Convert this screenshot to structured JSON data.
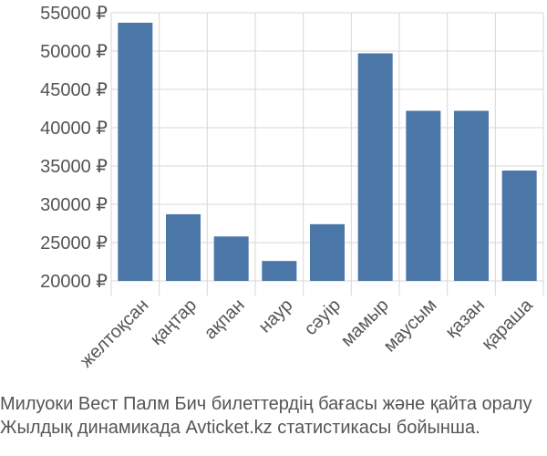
{
  "chart_data": {
    "type": "bar",
    "categories": [
      "желтоқсан",
      "қаңтар",
      "ақпан",
      "наур",
      "сәуір",
      "мамыр",
      "маусым",
      "қазан",
      "қараша"
    ],
    "series": [
      {
        "values": [
          53700,
          28700,
          25800,
          22600,
          27400,
          49700,
          42200,
          42200,
          34400
        ]
      }
    ],
    "y_ticks": [
      "20000 ₽",
      "25000 ₽",
      "30000 ₽",
      "35000 ₽",
      "40000 ₽",
      "45000 ₽",
      "50000 ₽",
      "55000 ₽"
    ],
    "ylim": [
      20000,
      55000
    ],
    "grid": true,
    "title": "",
    "xlabel": "",
    "ylabel": "",
    "colors": {
      "bar": "#4a76a8",
      "grid": "#d7d7d7",
      "text": "#555555"
    }
  },
  "caption": {
    "line1": "Милуоки Вест Палм Бич билеттердің бағасы және қайта оралу",
    "line2": "Жылдық динамикада Avticket.kz статистикасы бойынша."
  }
}
